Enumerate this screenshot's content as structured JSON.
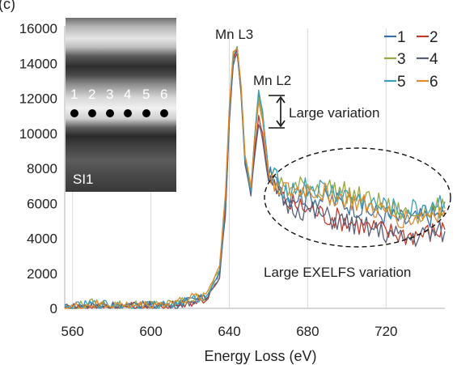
{
  "panel_label": "(c)",
  "colors": {
    "series_1": "#3b6fa8",
    "series_2": "#c0392b",
    "series_3": "#95a843",
    "series_4": "#5a5f78",
    "series_5": "#3aa0b8",
    "series_6": "#e08a2c"
  },
  "inset": {
    "label": "SI1",
    "point_labels": [
      "1",
      "2",
      "3",
      "4",
      "5",
      "6"
    ]
  },
  "chart_data": {
    "type": "line",
    "title": "",
    "xlabel": "Energy Loss (eV)",
    "ylabel": "",
    "xlim": [
      556,
      750
    ],
    "ylim": [
      0,
      16000
    ],
    "x_ticks": [
      560,
      600,
      640,
      680,
      720
    ],
    "x_tick_labels": [
      "560",
      "600",
      "640",
      "680",
      "720"
    ],
    "y_ticks": [
      0,
      2000,
      4000,
      6000,
      8000,
      10000,
      12000,
      14000,
      16000
    ],
    "y_tick_labels": [
      "0",
      "2000",
      "4000",
      "6000",
      "8000",
      "10000",
      "12000",
      "14000",
      "16000"
    ],
    "grid": "vertical",
    "legend_position": "top-right",
    "series": [
      {
        "name": "1",
        "x": [
          556,
          570,
          590,
          610,
          628,
          635,
          638,
          640,
          642,
          644,
          646,
          648,
          651,
          653,
          655,
          657,
          660,
          663,
          670,
          680,
          690,
          700,
          710,
          720,
          730,
          740,
          750
        ],
        "y": [
          0,
          200,
          150,
          200,
          600,
          2000,
          6000,
          11000,
          14300,
          14700,
          12500,
          8500,
          6700,
          9500,
          12300,
          11000,
          7600,
          7200,
          6400,
          6500,
          6200,
          6000,
          5600,
          5300,
          5000,
          5200,
          5400
        ]
      },
      {
        "name": "2",
        "x": [
          556,
          570,
          590,
          610,
          628,
          635,
          638,
          640,
          642,
          644,
          646,
          648,
          651,
          653,
          655,
          657,
          660,
          663,
          670,
          680,
          690,
          700,
          710,
          720,
          730,
          740,
          750
        ],
        "y": [
          0,
          150,
          100,
          150,
          500,
          1700,
          5400,
          10500,
          14200,
          14800,
          12400,
          8400,
          6600,
          9000,
          11000,
          10000,
          7300,
          6900,
          6000,
          5700,
          5300,
          5000,
          4700,
          4400,
          4200,
          4300,
          4500
        ]
      },
      {
        "name": "3",
        "x": [
          556,
          570,
          590,
          610,
          628,
          635,
          638,
          640,
          642,
          644,
          646,
          648,
          651,
          653,
          655,
          657,
          660,
          663,
          670,
          680,
          690,
          700,
          710,
          720,
          730,
          740,
          750
        ],
        "y": [
          0,
          300,
          200,
          250,
          700,
          2200,
          6300,
          11300,
          14600,
          14900,
          12600,
          8700,
          6900,
          10000,
          12100,
          10900,
          7800,
          7500,
          6800,
          7000,
          6900,
          6600,
          6200,
          5800,
          5400,
          5600,
          5700
        ]
      },
      {
        "name": "4",
        "x": [
          556,
          570,
          590,
          610,
          628,
          635,
          638,
          640,
          642,
          644,
          646,
          648,
          651,
          653,
          655,
          657,
          660,
          663,
          670,
          680,
          690,
          700,
          710,
          720,
          730,
          740,
          750
        ],
        "y": [
          0,
          180,
          120,
          180,
          550,
          1800,
          5600,
          10600,
          14000,
          14500,
          12300,
          8300,
          6500,
          8800,
          10600,
          9700,
          7200,
          6800,
          5900,
          5600,
          5200,
          4900,
          4600,
          4300,
          4000,
          4200,
          4400
        ]
      },
      {
        "name": "5",
        "x": [
          556,
          570,
          590,
          610,
          628,
          635,
          638,
          640,
          642,
          644,
          646,
          648,
          651,
          653,
          655,
          657,
          660,
          663,
          670,
          680,
          690,
          700,
          710,
          720,
          730,
          740,
          750
        ],
        "y": [
          0,
          250,
          180,
          220,
          650,
          2100,
          6200,
          11200,
          14500,
          14850,
          12600,
          8600,
          6800,
          9900,
          12400,
          11200,
          7900,
          7400,
          6700,
          6900,
          6700,
          6400,
          6000,
          5700,
          5500,
          5800,
          6100
        ]
      },
      {
        "name": "6",
        "x": [
          556,
          570,
          590,
          610,
          628,
          635,
          638,
          640,
          642,
          644,
          646,
          648,
          651,
          653,
          655,
          657,
          660,
          663,
          670,
          680,
          690,
          700,
          710,
          720,
          730,
          740,
          750
        ],
        "y": [
          0,
          220,
          160,
          300,
          800,
          2400,
          6600,
          11500,
          14700,
          15000,
          12700,
          8800,
          7000,
          9700,
          11800,
          10700,
          7700,
          7300,
          6600,
          6800,
          6500,
          6200,
          5800,
          5400,
          5100,
          5300,
          5600
        ]
      }
    ],
    "annotations": [
      {
        "text": "Mn L3",
        "x": 644,
        "y": 15000
      },
      {
        "text": "Mn L2",
        "x": 655,
        "y": 12400
      },
      {
        "text": "Large variation",
        "x": 655,
        "y": 11000
      },
      {
        "text": "Large EXELFS variation",
        "x": 705,
        "y": 5200
      }
    ]
  }
}
